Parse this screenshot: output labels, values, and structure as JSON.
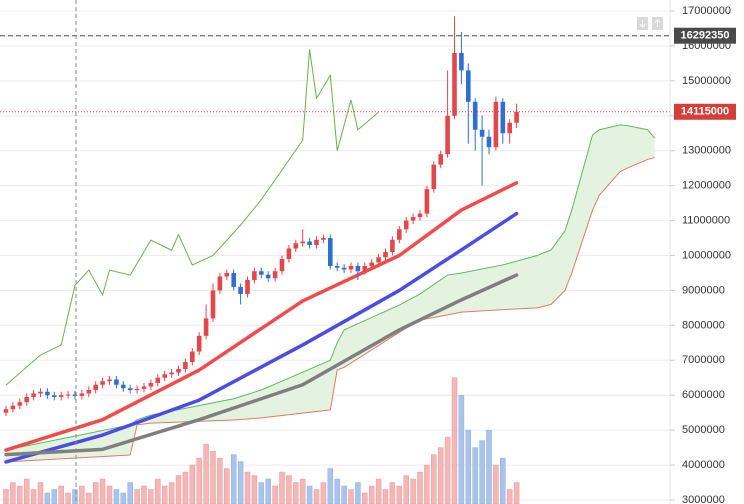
{
  "chart_data": {
    "type": "candlestick",
    "open": [
      5500000,
      5600000,
      5700000,
      5800000,
      5950000,
      6050000,
      6100000,
      6000000,
      5950000,
      6000000,
      6020000,
      5980000,
      6050000,
      6150000,
      6300000,
      6400000,
      6450000,
      6300000,
      6200000,
      6150000,
      6180000,
      6250000,
      6350000,
      6500000,
      6600000,
      6650000,
      6750000,
      6950000,
      7250000,
      7700000,
      8200000,
      9000000,
      9400000,
      9500000,
      9100000,
      8900000,
      9300000,
      9550000,
      9450000,
      9350000,
      9550000,
      9900000,
      10200000,
      10350000,
      10400000,
      10300000,
      10450000,
      10500000,
      9700000,
      9650000,
      9600000,
      9700000,
      9550000,
      9700000,
      9800000,
      9950000,
      10100000,
      10450000,
      10750000,
      11000000,
      11100000,
      11200000,
      11900000,
      12600000,
      12900000,
      14000000,
      15800000,
      15300000,
      14400000,
      13600000,
      13400000,
      13100000,
      14400000,
      13500000,
      13800000
    ],
    "high": [
      5700000,
      5800000,
      5900000,
      6050000,
      6150000,
      6200000,
      6200000,
      6100000,
      6100000,
      6120000,
      6120000,
      6150000,
      6250000,
      6400000,
      6500000,
      6550000,
      6550000,
      6400000,
      6300000,
      6280000,
      6350000,
      6450000,
      6600000,
      6700000,
      6750000,
      6850000,
      7050000,
      7350000,
      7800000,
      8600000,
      9200000,
      9500000,
      9600000,
      9600000,
      9200000,
      9400000,
      9650000,
      9650000,
      9550000,
      9650000,
      10000000,
      10300000,
      10450000,
      10750000,
      10500000,
      10550000,
      10600000,
      10600000,
      9800000,
      9750000,
      9800000,
      9800000,
      9800000,
      9900000,
      10050000,
      10200000,
      10550000,
      10850000,
      11100000,
      11200000,
      11300000,
      12000000,
      12700000,
      13000000,
      15300000,
      16850000,
      16400000,
      15500000,
      14500000,
      14000000,
      13600000,
      14550000,
      14500000,
      13900000,
      14350000
    ],
    "low": [
      5400000,
      5500000,
      5600000,
      5700000,
      5850000,
      5950000,
      5900000,
      5850000,
      5850000,
      5900000,
      5880000,
      5880000,
      5950000,
      6050000,
      6200000,
      6300000,
      6200000,
      6100000,
      6050000,
      6050000,
      6080000,
      6150000,
      6250000,
      6400000,
      6500000,
      6550000,
      6650000,
      6850000,
      7150000,
      7600000,
      8100000,
      8900000,
      9300000,
      9000000,
      8600000,
      8800000,
      9200000,
      9350000,
      9250000,
      9250000,
      9450000,
      9800000,
      10100000,
      10250000,
      10200000,
      10200000,
      10350000,
      9600000,
      9550000,
      9500000,
      9500000,
      9300000,
      9450000,
      9600000,
      9700000,
      9850000,
      10000000,
      10350000,
      10650000,
      10900000,
      11000000,
      11100000,
      11800000,
      12500000,
      12800000,
      13900000,
      14900000,
      13200000,
      13000000,
      12000000,
      12900000,
      13000000,
      13200000,
      13200000,
      13650000
    ],
    "close": [
      5600000,
      5700000,
      5800000,
      5950000,
      6050000,
      6100000,
      6000000,
      5950000,
      6000000,
      6020000,
      5980000,
      6050000,
      6150000,
      6300000,
      6400000,
      6450000,
      6300000,
      6200000,
      6150000,
      6180000,
      6250000,
      6350000,
      6500000,
      6600000,
      6650000,
      6750000,
      6950000,
      7250000,
      7700000,
      8200000,
      9000000,
      9400000,
      9500000,
      9100000,
      8900000,
      9300000,
      9550000,
      9450000,
      9350000,
      9550000,
      9900000,
      10200000,
      10350000,
      10400000,
      10300000,
      10450000,
      10500000,
      9700000,
      9650000,
      9600000,
      9700000,
      9550000,
      9700000,
      9800000,
      9950000,
      10100000,
      10450000,
      10750000,
      11000000,
      11100000,
      11200000,
      11900000,
      12600000,
      12900000,
      14000000,
      15800000,
      15300000,
      14400000,
      13600000,
      13400000,
      13100000,
      14400000,
      13500000,
      13800000,
      14115000
    ],
    "up_color": "#e2474b",
    "down_color": "#2f6fcf",
    "volume": {
      "up_color": "#f4b6b6",
      "down_color": "#a9c4ea",
      "values": [
        3300000,
        3500000,
        3400000,
        3600000,
        3300000,
        3500000,
        3200000,
        3300000,
        3400000,
        3200000,
        3300000,
        3400000,
        3200000,
        3500000,
        3600000,
        3400000,
        3300000,
        3200000,
        3500000,
        3300000,
        3400000,
        3300000,
        3600000,
        3400000,
        3500000,
        3700000,
        3800000,
        4000000,
        4200000,
        4600000,
        4400000,
        4200000,
        3900000,
        4300000,
        4100000,
        3800000,
        3700000,
        3500000,
        3600000,
        3400000,
        3800000,
        3700000,
        3500000,
        3600000,
        3400000,
        3300000,
        3500000,
        3900000,
        3600000,
        3400000,
        3300000,
        3500000,
        3200000,
        3400000,
        3600000,
        3300000,
        3500000,
        3400000,
        3700000,
        3600000,
        3800000,
        4000000,
        4300000,
        4500000,
        4800000,
        6500000,
        6000000,
        5000000,
        4500000,
        4700000,
        5000000,
        4000000,
        4200000,
        3300000,
        3500000
      ]
    },
    "moving_averages": [
      {
        "color": "#f24b4b",
        "x": [
          0,
          14,
          28,
          43,
          57,
          66,
          74
        ],
        "values": [
          4430000,
          5300000,
          6720000,
          8700000,
          10000000,
          11300000,
          12080000
        ]
      },
      {
        "color": "#4b4be6",
        "x": [
          0,
          14,
          28,
          43,
          57,
          66,
          74
        ],
        "values": [
          4090000,
          4860000,
          5860000,
          7440000,
          9000000,
          10160000,
          11200000
        ]
      },
      {
        "color": "#7f7f7f",
        "x": [
          0,
          14,
          28,
          43,
          57,
          66,
          74
        ],
        "values": [
          4300000,
          4450000,
          5300000,
          6300000,
          7870000,
          8730000,
          9440000
        ]
      }
    ],
    "lagging_span": {
      "color": "#6ab04c",
      "x": [
        0,
        5,
        8,
        10,
        12,
        14,
        15,
        18,
        21,
        24,
        25,
        27,
        30,
        34,
        37,
        40,
        43,
        44,
        45,
        47,
        48,
        50,
        51,
        54
      ],
      "values": [
        6290000,
        7150000,
        7440000,
        9150000,
        9580000,
        8870000,
        9580000,
        9440000,
        10440000,
        10150000,
        10600000,
        9730000,
        10000000,
        10870000,
        11600000,
        12450000,
        13300000,
        15900000,
        14500000,
        15160000,
        13000000,
        14450000,
        13600000,
        14100000
      ]
    },
    "cloud": {
      "fill": "#e4f3df",
      "span_a_color": "#5cb85c",
      "span_b_color": "#e07a6a",
      "x": [
        0,
        18,
        19,
        21,
        33,
        37,
        47,
        48,
        49,
        57,
        60,
        64,
        66,
        72,
        77,
        79,
        81,
        82,
        85,
        86,
        89,
        90,
        93,
        94
      ],
      "span_a": [
        4430000,
        5150000,
        5300000,
        5430000,
        5900000,
        6150000,
        7000000,
        7500000,
        7870000,
        8580000,
        8900000,
        9440000,
        9500000,
        9730000,
        10000000,
        10160000,
        10700000,
        11300000,
        13450000,
        13600000,
        13740000,
        13720000,
        13600000,
        13360000
      ],
      "span_b": [
        4090000,
        4290000,
        5150000,
        5200000,
        5290000,
        5350000,
        5580000,
        6720000,
        6800000,
        7800000,
        8150000,
        8300000,
        8380000,
        8450000,
        8500000,
        8600000,
        9000000,
        9500000,
        11300000,
        11730000,
        12400000,
        12500000,
        12750000,
        12800000
      ]
    },
    "ylim": [
      3000000,
      17000000
    ],
    "yticks": [
      3000000,
      4000000,
      5000000,
      6000000,
      7000000,
      8000000,
      9000000,
      10000000,
      11000000,
      12000000,
      13000000,
      14000000,
      15000000,
      16000000,
      17000000
    ],
    "grid": true,
    "price_lines": [
      {
        "value": 16292350,
        "color": "#4a4a4a",
        "style": "dashed"
      },
      {
        "value": 14115000,
        "color": "#d43f3a",
        "style": "dotted"
      }
    ]
  }
}
